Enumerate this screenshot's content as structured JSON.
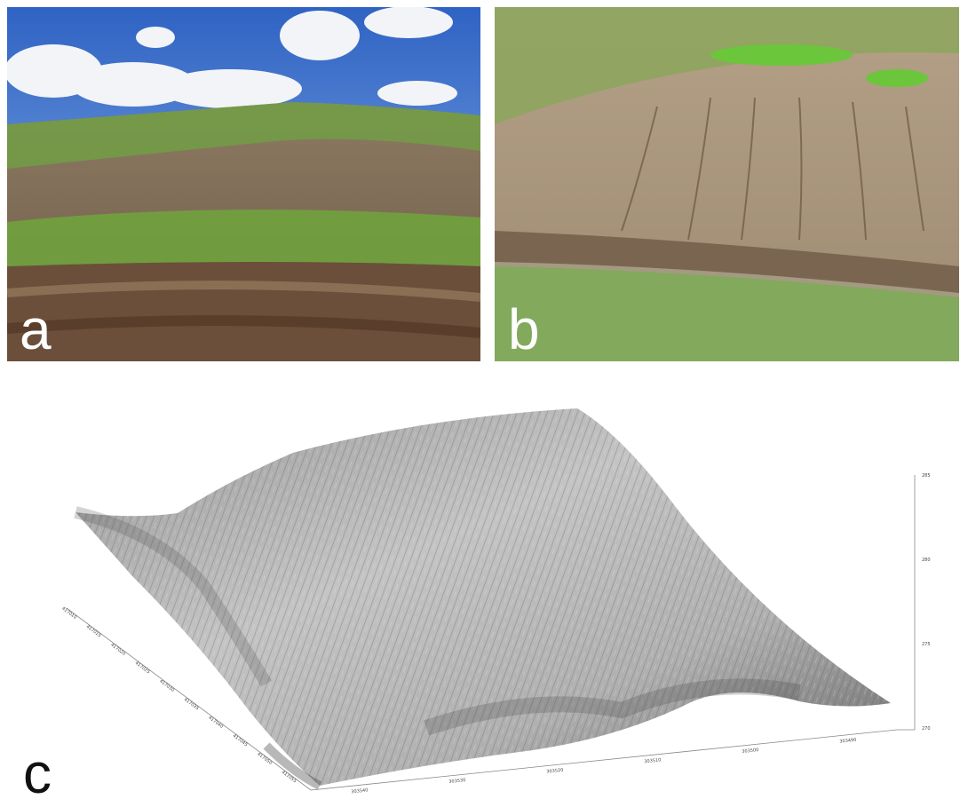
{
  "panels": [
    {
      "label": "a"
    },
    {
      "label": "b"
    },
    {
      "label": "c",
      "axes": {
        "left_ticks": [
          "417010",
          "417015",
          "417020",
          "417025",
          "417030",
          "417035",
          "417040",
          "417045",
          "417050",
          "417055"
        ],
        "bottom_ticks": [
          "303540",
          "303530",
          "303520",
          "303510",
          "303500",
          "303490"
        ],
        "vertical_ticks": [
          "285",
          "280",
          "275",
          "270"
        ]
      }
    }
  ]
}
